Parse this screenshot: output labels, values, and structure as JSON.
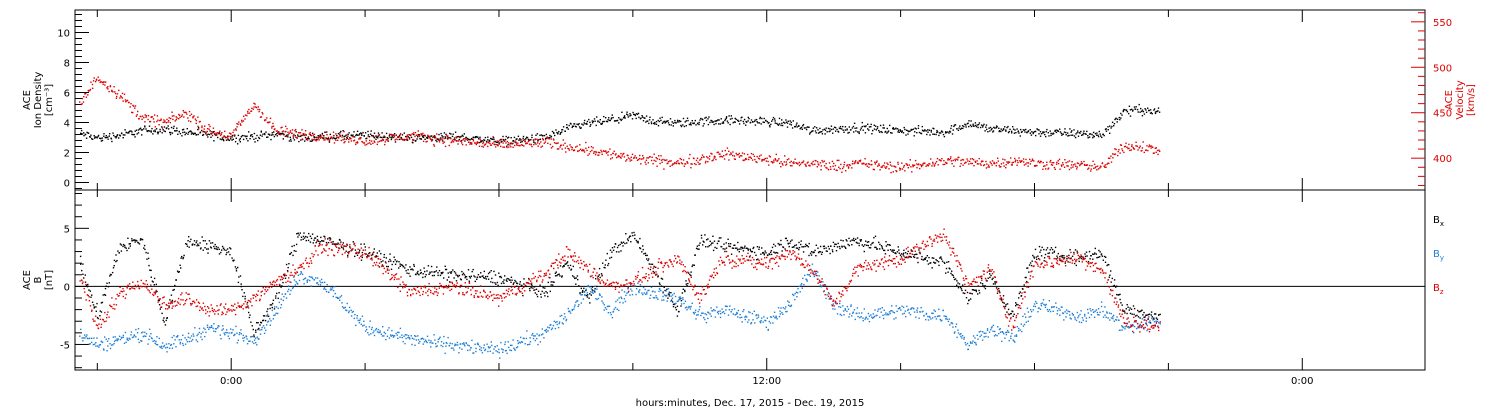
{
  "chart_data": {
    "xlabel": "hours:minutes, Dec. 17, 2015 - Dec. 19, 2015",
    "x_tick_labels": [
      "0:00",
      "12:00",
      "0:00"
    ],
    "x_range_hours": [
      -3.5,
      26.75
    ],
    "data_end_hour": 20.8,
    "panels": [
      {
        "type": "scatter",
        "left_axis": {
          "label_lines": [
            "ACE",
            "Ion Density",
            "[cm⁻³]"
          ],
          "range": [
            -0.5,
            11.5
          ],
          "ticks": [
            0,
            2,
            4,
            6,
            8,
            10
          ],
          "color": "#000000"
        },
        "right_axis": {
          "label_lines": [
            "ACE",
            "Velocity",
            "[km/s]"
          ],
          "range": [
            365,
            563
          ],
          "ticks": [
            400,
            450,
            500,
            550
          ],
          "color": "#dd0000"
        },
        "series": [
          {
            "axis": "left",
            "color": "#000000",
            "points": [
              [
                -3.4,
                3.3
              ],
              [
                -3.0,
                3.0
              ],
              [
                -2.5,
                3.2
              ],
              [
                -2.0,
                3.5
              ],
              [
                -1.5,
                3.6
              ],
              [
                -1.0,
                3.4
              ],
              [
                -0.5,
                3.2
              ],
              [
                0.0,
                3.0
              ],
              [
                0.5,
                3.1
              ],
              [
                1.0,
                3.3
              ],
              [
                1.5,
                3.0
              ],
              [
                2.0,
                3.1
              ],
              [
                3.0,
                3.2
              ],
              [
                4.0,
                3.0
              ],
              [
                5.0,
                3.1
              ],
              [
                6.0,
                2.8
              ],
              [
                7.0,
                3.0
              ],
              [
                7.5,
                3.6
              ],
              [
                8.0,
                4.0
              ],
              [
                8.5,
                4.2
              ],
              [
                9.0,
                4.5
              ],
              [
                9.5,
                4.1
              ],
              [
                10.0,
                4.0
              ],
              [
                11.0,
                4.2
              ],
              [
                12.0,
                4.1
              ],
              [
                12.5,
                4.0
              ],
              [
                13.0,
                3.5
              ],
              [
                14.0,
                3.7
              ],
              [
                15.0,
                3.5
              ],
              [
                16.0,
                3.4
              ],
              [
                16.5,
                4.0
              ],
              [
                17.0,
                3.6
              ],
              [
                18.0,
                3.4
              ],
              [
                19.0,
                3.3
              ],
              [
                19.5,
                3.2
              ],
              [
                20.0,
                4.8
              ],
              [
                20.4,
                4.9
              ],
              [
                20.8,
                4.7
              ]
            ]
          },
          {
            "axis": "right",
            "color": "#dd0000",
            "points": [
              [
                -3.4,
                460
              ],
              [
                -3.0,
                490
              ],
              [
                -2.5,
                470
              ],
              [
                -2.0,
                445
              ],
              [
                -1.5,
                440
              ],
              [
                -1.0,
                450
              ],
              [
                -0.5,
                430
              ],
              [
                0.0,
                425
              ],
              [
                0.5,
                460
              ],
              [
                1.0,
                430
              ],
              [
                2.0,
                425
              ],
              [
                3.0,
                420
              ],
              [
                4.0,
                425
              ],
              [
                5.0,
                420
              ],
              [
                6.0,
                415
              ],
              [
                7.0,
                418
              ],
              [
                8.0,
                410
              ],
              [
                8.5,
                405
              ],
              [
                9.0,
                400
              ],
              [
                9.5,
                398
              ],
              [
                10.0,
                395
              ],
              [
                11.0,
                405
              ],
              [
                12.0,
                400
              ],
              [
                12.5,
                395
              ],
              [
                13.0,
                395
              ],
              [
                13.5,
                392
              ],
              [
                14.0,
                395
              ],
              [
                15.0,
                390
              ],
              [
                16.0,
                398
              ],
              [
                17.0,
                395
              ],
              [
                17.5,
                398
              ],
              [
                18.0,
                395
              ],
              [
                19.0,
                393
              ],
              [
                19.5,
                390
              ],
              [
                20.0,
                415
              ],
              [
                20.8,
                410
              ]
            ]
          }
        ]
      },
      {
        "type": "scatter",
        "left_axis": {
          "label_lines": [
            "ACE",
            "B",
            "[nT]"
          ],
          "range": [
            -7.2,
            8.3
          ],
          "ticks": [
            -5,
            0,
            5
          ],
          "zero_line": true,
          "color": "#000000"
        },
        "series": [
          {
            "name": "B",
            "name_sub": "x",
            "color": "#000000",
            "points": [
              [
                -3.4,
                2.0
              ],
              [
                -3.0,
                -2.5
              ],
              [
                -2.5,
                3.5
              ],
              [
                -2.0,
                4.0
              ],
              [
                -1.5,
                -3.0
              ],
              [
                -1.0,
                4.0
              ],
              [
                -0.5,
                3.5
              ],
              [
                0.0,
                3.0
              ],
              [
                0.5,
                -4.0
              ],
              [
                1.0,
                -1.0
              ],
              [
                1.5,
                4.5
              ],
              [
                2.0,
                4.0
              ],
              [
                3.0,
                3.0
              ],
              [
                4.0,
                1.5
              ],
              [
                5.0,
                1.0
              ],
              [
                6.0,
                0.8
              ],
              [
                7.0,
                -0.5
              ],
              [
                7.5,
                2.0
              ],
              [
                8.0,
                -1.0
              ],
              [
                8.5,
                3.0
              ],
              [
                9.0,
                4.5
              ],
              [
                10.0,
                -2.0
              ],
              [
                10.5,
                4.0
              ],
              [
                11.0,
                3.5
              ],
              [
                12.0,
                3.0
              ],
              [
                12.5,
                4.0
              ],
              [
                13.0,
                3.0
              ],
              [
                13.5,
                3.5
              ],
              [
                14.0,
                4.0
              ],
              [
                15.0,
                3.0
              ],
              [
                16.0,
                2.0
              ],
              [
                16.5,
                -1.0
              ],
              [
                17.0,
                1.0
              ],
              [
                17.5,
                -2.5
              ],
              [
                18.0,
                3.0
              ],
              [
                19.0,
                2.5
              ],
              [
                19.5,
                3.0
              ],
              [
                20.0,
                -2.0
              ],
              [
                20.8,
                -2.5
              ]
            ]
          },
          {
            "name": "B",
            "name_sub": "y",
            "color": "#1f7fd6",
            "points": [
              [
                -3.4,
                -4.0
              ],
              [
                -3.0,
                -5.0
              ],
              [
                -2.5,
                -4.5
              ],
              [
                -2.0,
                -4.0
              ],
              [
                -1.5,
                -5.0
              ],
              [
                -1.0,
                -4.5
              ],
              [
                -0.5,
                -3.5
              ],
              [
                0.0,
                -4.0
              ],
              [
                0.5,
                -4.5
              ],
              [
                1.0,
                -2.0
              ],
              [
                1.5,
                1.0
              ],
              [
                2.0,
                0.5
              ],
              [
                3.0,
                -3.5
              ],
              [
                4.0,
                -4.5
              ],
              [
                5.0,
                -5.0
              ],
              [
                6.0,
                -5.5
              ],
              [
                7.0,
                -4.0
              ],
              [
                7.5,
                -2.5
              ],
              [
                8.0,
                0.0
              ],
              [
                8.5,
                -2.0
              ],
              [
                9.0,
                0.0
              ],
              [
                10.0,
                -1.0
              ],
              [
                10.5,
                -2.5
              ],
              [
                11.0,
                -2.0
              ],
              [
                12.0,
                -3.0
              ],
              [
                12.5,
                -1.5
              ],
              [
                13.0,
                1.5
              ],
              [
                13.5,
                -1.5
              ],
              [
                14.0,
                -2.5
              ],
              [
                15.0,
                -2.0
              ],
              [
                16.0,
                -2.5
              ],
              [
                16.5,
                -5.0
              ],
              [
                17.0,
                -3.5
              ],
              [
                17.5,
                -4.5
              ],
              [
                18.0,
                -1.5
              ],
              [
                19.0,
                -2.5
              ],
              [
                19.5,
                -2.0
              ],
              [
                20.0,
                -3.5
              ],
              [
                20.8,
                -3.0
              ]
            ]
          },
          {
            "name": "B",
            "name_sub": "z",
            "color": "#dd0000",
            "points": [
              [
                -3.4,
                1.0
              ],
              [
                -3.0,
                -3.5
              ],
              [
                -2.5,
                -0.5
              ],
              [
                -2.0,
                0.5
              ],
              [
                -1.5,
                -1.5
              ],
              [
                -1.0,
                -1.0
              ],
              [
                -0.5,
                -2.0
              ],
              [
                0.0,
                -2.0
              ],
              [
                0.5,
                -1.0
              ],
              [
                1.0,
                0.5
              ],
              [
                1.5,
                1.5
              ],
              [
                2.0,
                3.5
              ],
              [
                3.0,
                3.0
              ],
              [
                4.0,
                -0.5
              ],
              [
                5.0,
                0.0
              ],
              [
                6.0,
                -1.0
              ],
              [
                7.0,
                1.0
              ],
              [
                7.5,
                3.0
              ],
              [
                8.0,
                1.5
              ],
              [
                8.5,
                0.0
              ],
              [
                9.0,
                0.5
              ],
              [
                10.0,
                2.5
              ],
              [
                10.5,
                -1.0
              ],
              [
                11.0,
                2.5
              ],
              [
                12.0,
                2.0
              ],
              [
                12.5,
                3.0
              ],
              [
                13.0,
                1.5
              ],
              [
                13.5,
                -1.5
              ],
              [
                14.0,
                1.5
              ],
              [
                15.0,
                2.5
              ],
              [
                16.0,
                4.5
              ],
              [
                16.5,
                0.0
              ],
              [
                17.0,
                1.5
              ],
              [
                17.5,
                -3.5
              ],
              [
                18.0,
                2.0
              ],
              [
                19.0,
                2.5
              ],
              [
                19.5,
                1.5
              ],
              [
                20.0,
                -3.0
              ],
              [
                20.8,
                -3.5
              ]
            ]
          }
        ]
      }
    ]
  }
}
